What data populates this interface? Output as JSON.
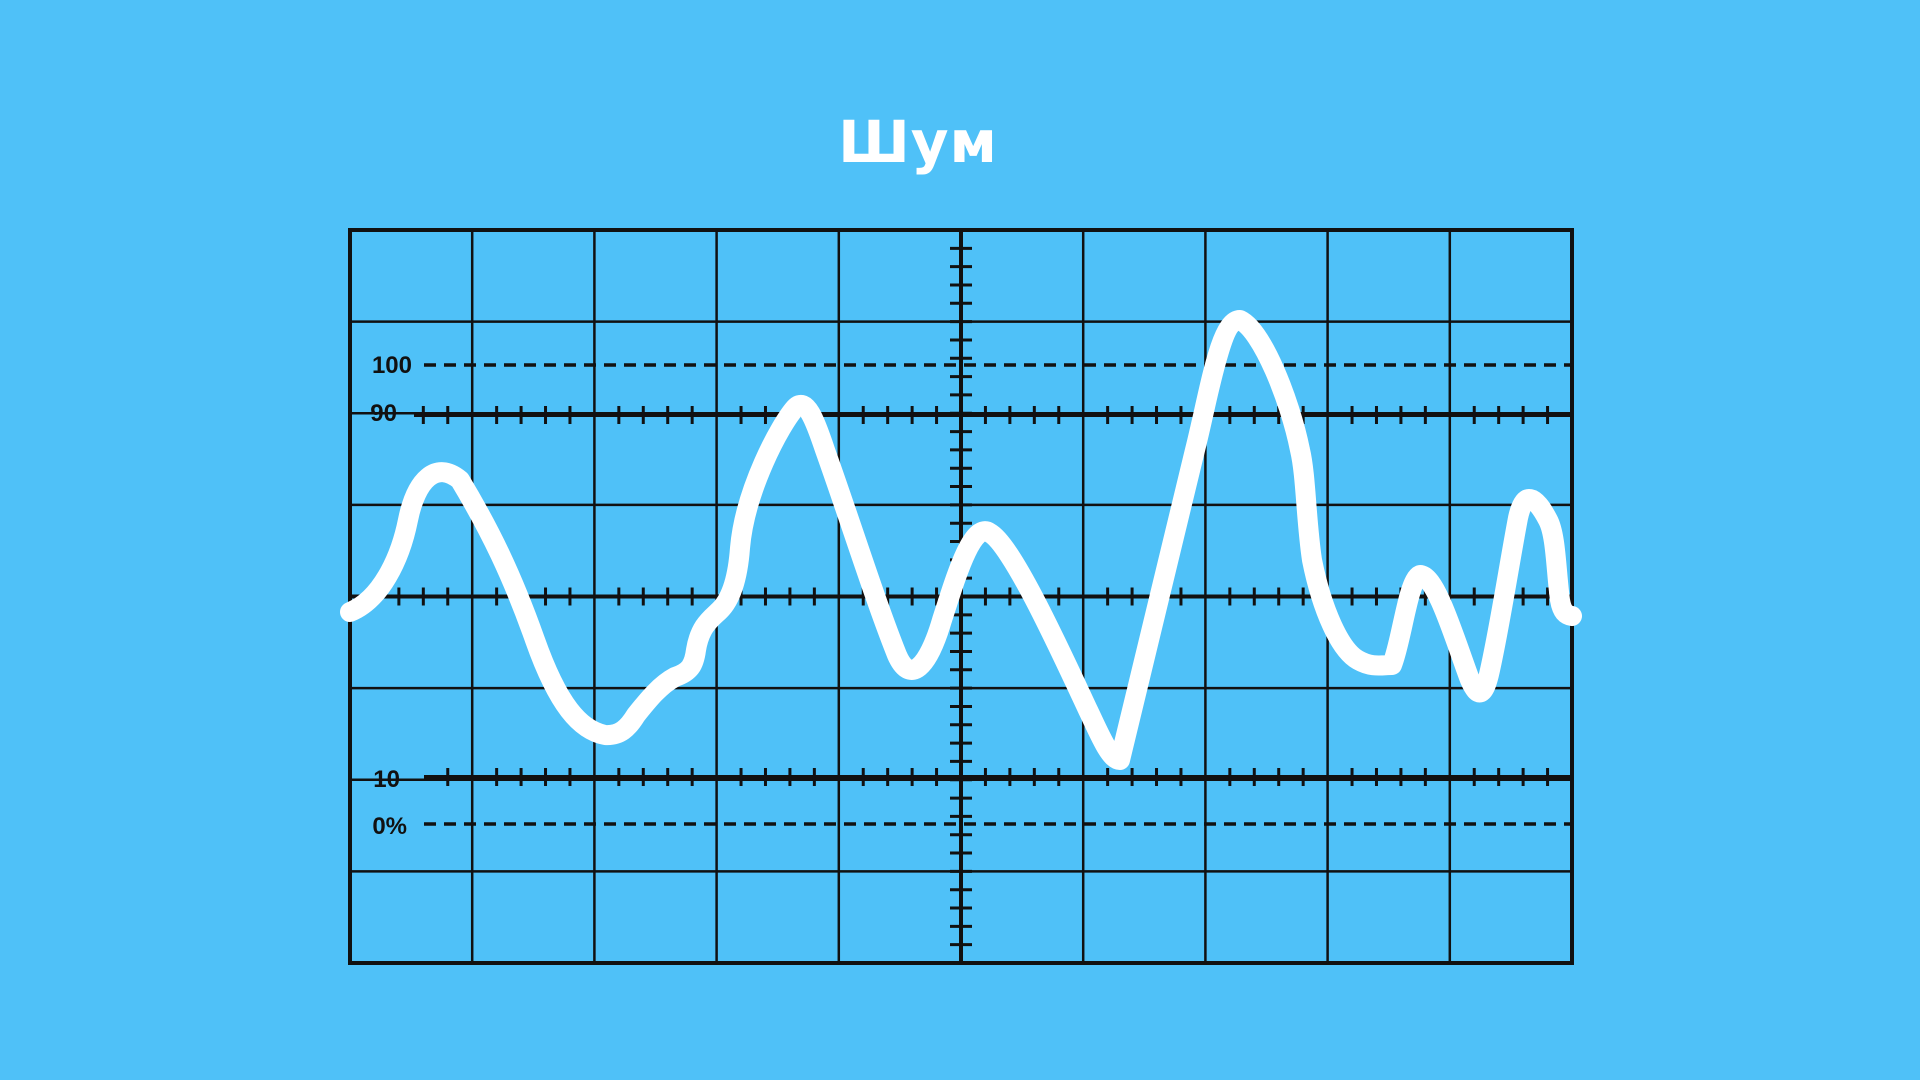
{
  "title": "Шум",
  "colors": {
    "background": "#4fc1f8",
    "grid": "#111111",
    "signal": "#ffffff",
    "title": "#ffffff"
  },
  "labels": {
    "level_100": "100",
    "level_90": "90",
    "level_10": "10",
    "level_0": "0%"
  }
}
